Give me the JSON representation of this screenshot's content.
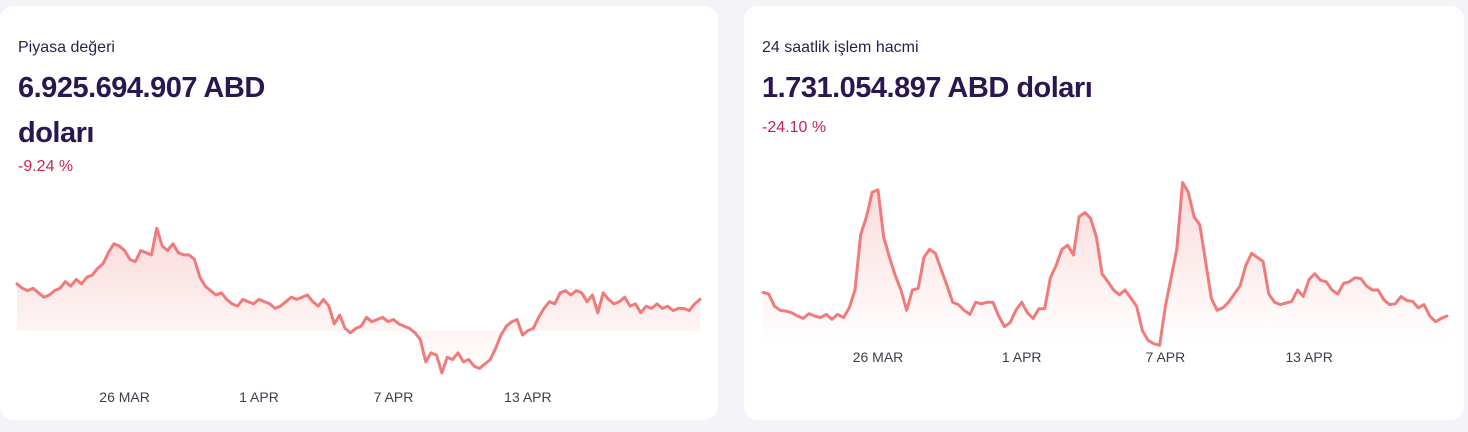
{
  "colors": {
    "line": "#ef7b7b",
    "accent_negative": "#c8234f",
    "title": "#2a1650",
    "background": "#f4f4f8",
    "card": "#ffffff"
  },
  "cards": [
    {
      "label": "Piyasa değeri",
      "value": "6.925.694.907 ABD doları",
      "change": "-9.24 %"
    },
    {
      "label": "24 saatlik işlem hacmi",
      "value": "1.731.054.897 ABD doları",
      "change": "-24.10 %"
    }
  ],
  "chart_data": [
    {
      "type": "area",
      "title": "Piyasa değeri",
      "x_tick_labels": [
        "26 MAR",
        "1 APR",
        "7 APR",
        "13 APR"
      ],
      "x_tick_index": [
        20,
        45,
        70,
        95
      ],
      "values": [
        6.95,
        6.93,
        6.92,
        6.93,
        6.91,
        6.89,
        6.9,
        6.92,
        6.93,
        6.96,
        6.94,
        6.97,
        6.95,
        6.98,
        6.99,
        7.02,
        7.04,
        7.09,
        7.13,
        7.12,
        7.1,
        7.06,
        7.05,
        7.1,
        7.09,
        7.08,
        7.2,
        7.12,
        7.1,
        7.13,
        7.09,
        7.08,
        7.08,
        7.06,
        6.98,
        6.94,
        6.92,
        6.9,
        6.91,
        6.88,
        6.86,
        6.85,
        6.88,
        6.87,
        6.86,
        6.88,
        6.87,
        6.86,
        6.84,
        6.85,
        6.87,
        6.89,
        6.88,
        6.89,
        6.9,
        6.87,
        6.85,
        6.88,
        6.85,
        6.77,
        6.81,
        6.75,
        6.73,
        6.75,
        6.76,
        6.8,
        6.78,
        6.79,
        6.8,
        6.78,
        6.79,
        6.77,
        6.76,
        6.75,
        6.73,
        6.7,
        6.6,
        6.64,
        6.63,
        6.55,
        6.62,
        6.61,
        6.64,
        6.6,
        6.61,
        6.58,
        6.57,
        6.59,
        6.61,
        6.66,
        6.72,
        6.76,
        6.78,
        6.79,
        6.72,
        6.74,
        6.75,
        6.8,
        6.84,
        6.87,
        6.86,
        6.91,
        6.92,
        6.9,
        6.92,
        6.91,
        6.87,
        6.9,
        6.82,
        6.91,
        6.88,
        6.86,
        6.87,
        6.89,
        6.85,
        6.86,
        6.82,
        6.85,
        6.84,
        6.86,
        6.84,
        6.85,
        6.83,
        6.84,
        6.84,
        6.83,
        6.86,
        6.88
      ],
      "ylim": [
        6.5,
        7.3
      ],
      "grid": false
    },
    {
      "type": "area",
      "title": "24 saatlik işlem hacmi",
      "x_tick_labels": [
        "26 MAR",
        "1 APR",
        "7 APR",
        "13 APR"
      ],
      "x_tick_index": [
        20,
        45,
        70,
        95
      ],
      "values": [
        1.57,
        1.55,
        1.4,
        1.35,
        1.34,
        1.32,
        1.28,
        1.25,
        1.31,
        1.28,
        1.26,
        1.3,
        1.24,
        1.3,
        1.26,
        1.38,
        1.6,
        2.28,
        2.5,
        2.8,
        2.83,
        2.25,
        2.0,
        1.78,
        1.6,
        1.35,
        1.6,
        1.62,
        2.0,
        2.1,
        2.05,
        1.85,
        1.66,
        1.45,
        1.42,
        1.35,
        1.3,
        1.45,
        1.43,
        1.45,
        1.45,
        1.28,
        1.15,
        1.2,
        1.35,
        1.45,
        1.32,
        1.25,
        1.37,
        1.37,
        1.75,
        1.9,
        2.1,
        2.15,
        2.03,
        2.5,
        2.55,
        2.48,
        2.25,
        1.8,
        1.7,
        1.6,
        1.54,
        1.6,
        1.5,
        1.4,
        1.1,
        0.98,
        0.94,
        0.92,
        1.4,
        1.75,
        2.1,
        2.92,
        2.8,
        2.5,
        2.4,
        1.95,
        1.5,
        1.35,
        1.38,
        1.45,
        1.55,
        1.65,
        1.9,
        2.05,
        2.0,
        1.95,
        1.55,
        1.45,
        1.42,
        1.44,
        1.46,
        1.6,
        1.52,
        1.73,
        1.8,
        1.72,
        1.7,
        1.6,
        1.55,
        1.68,
        1.7,
        1.75,
        1.74,
        1.65,
        1.6,
        1.6,
        1.48,
        1.42,
        1.43,
        1.52,
        1.47,
        1.46,
        1.38,
        1.42,
        1.28,
        1.21,
        1.25,
        1.28
      ],
      "ylim": [
        0.85,
        3.0
      ],
      "grid": false
    }
  ]
}
